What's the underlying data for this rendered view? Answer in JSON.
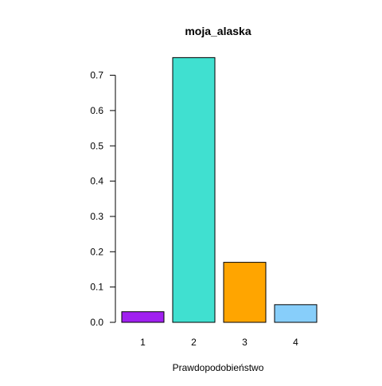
{
  "chart_data": {
    "type": "bar",
    "title": "moja_alaska",
    "xlabel": "Prawdopodobieństwo",
    "ylabel": "",
    "categories": [
      "1",
      "2",
      "3",
      "4"
    ],
    "values": [
      0.03,
      0.75,
      0.17,
      0.05
    ],
    "ylim": [
      0,
      0.75
    ],
    "yticks": [
      "0.0",
      "0.1",
      "0.2",
      "0.3",
      "0.4",
      "0.5",
      "0.6",
      "0.7"
    ],
    "colors": [
      "#a020f0",
      "#40e0d0",
      "#ffa500",
      "#87cefa"
    ],
    "grid": false,
    "legend": "none"
  }
}
